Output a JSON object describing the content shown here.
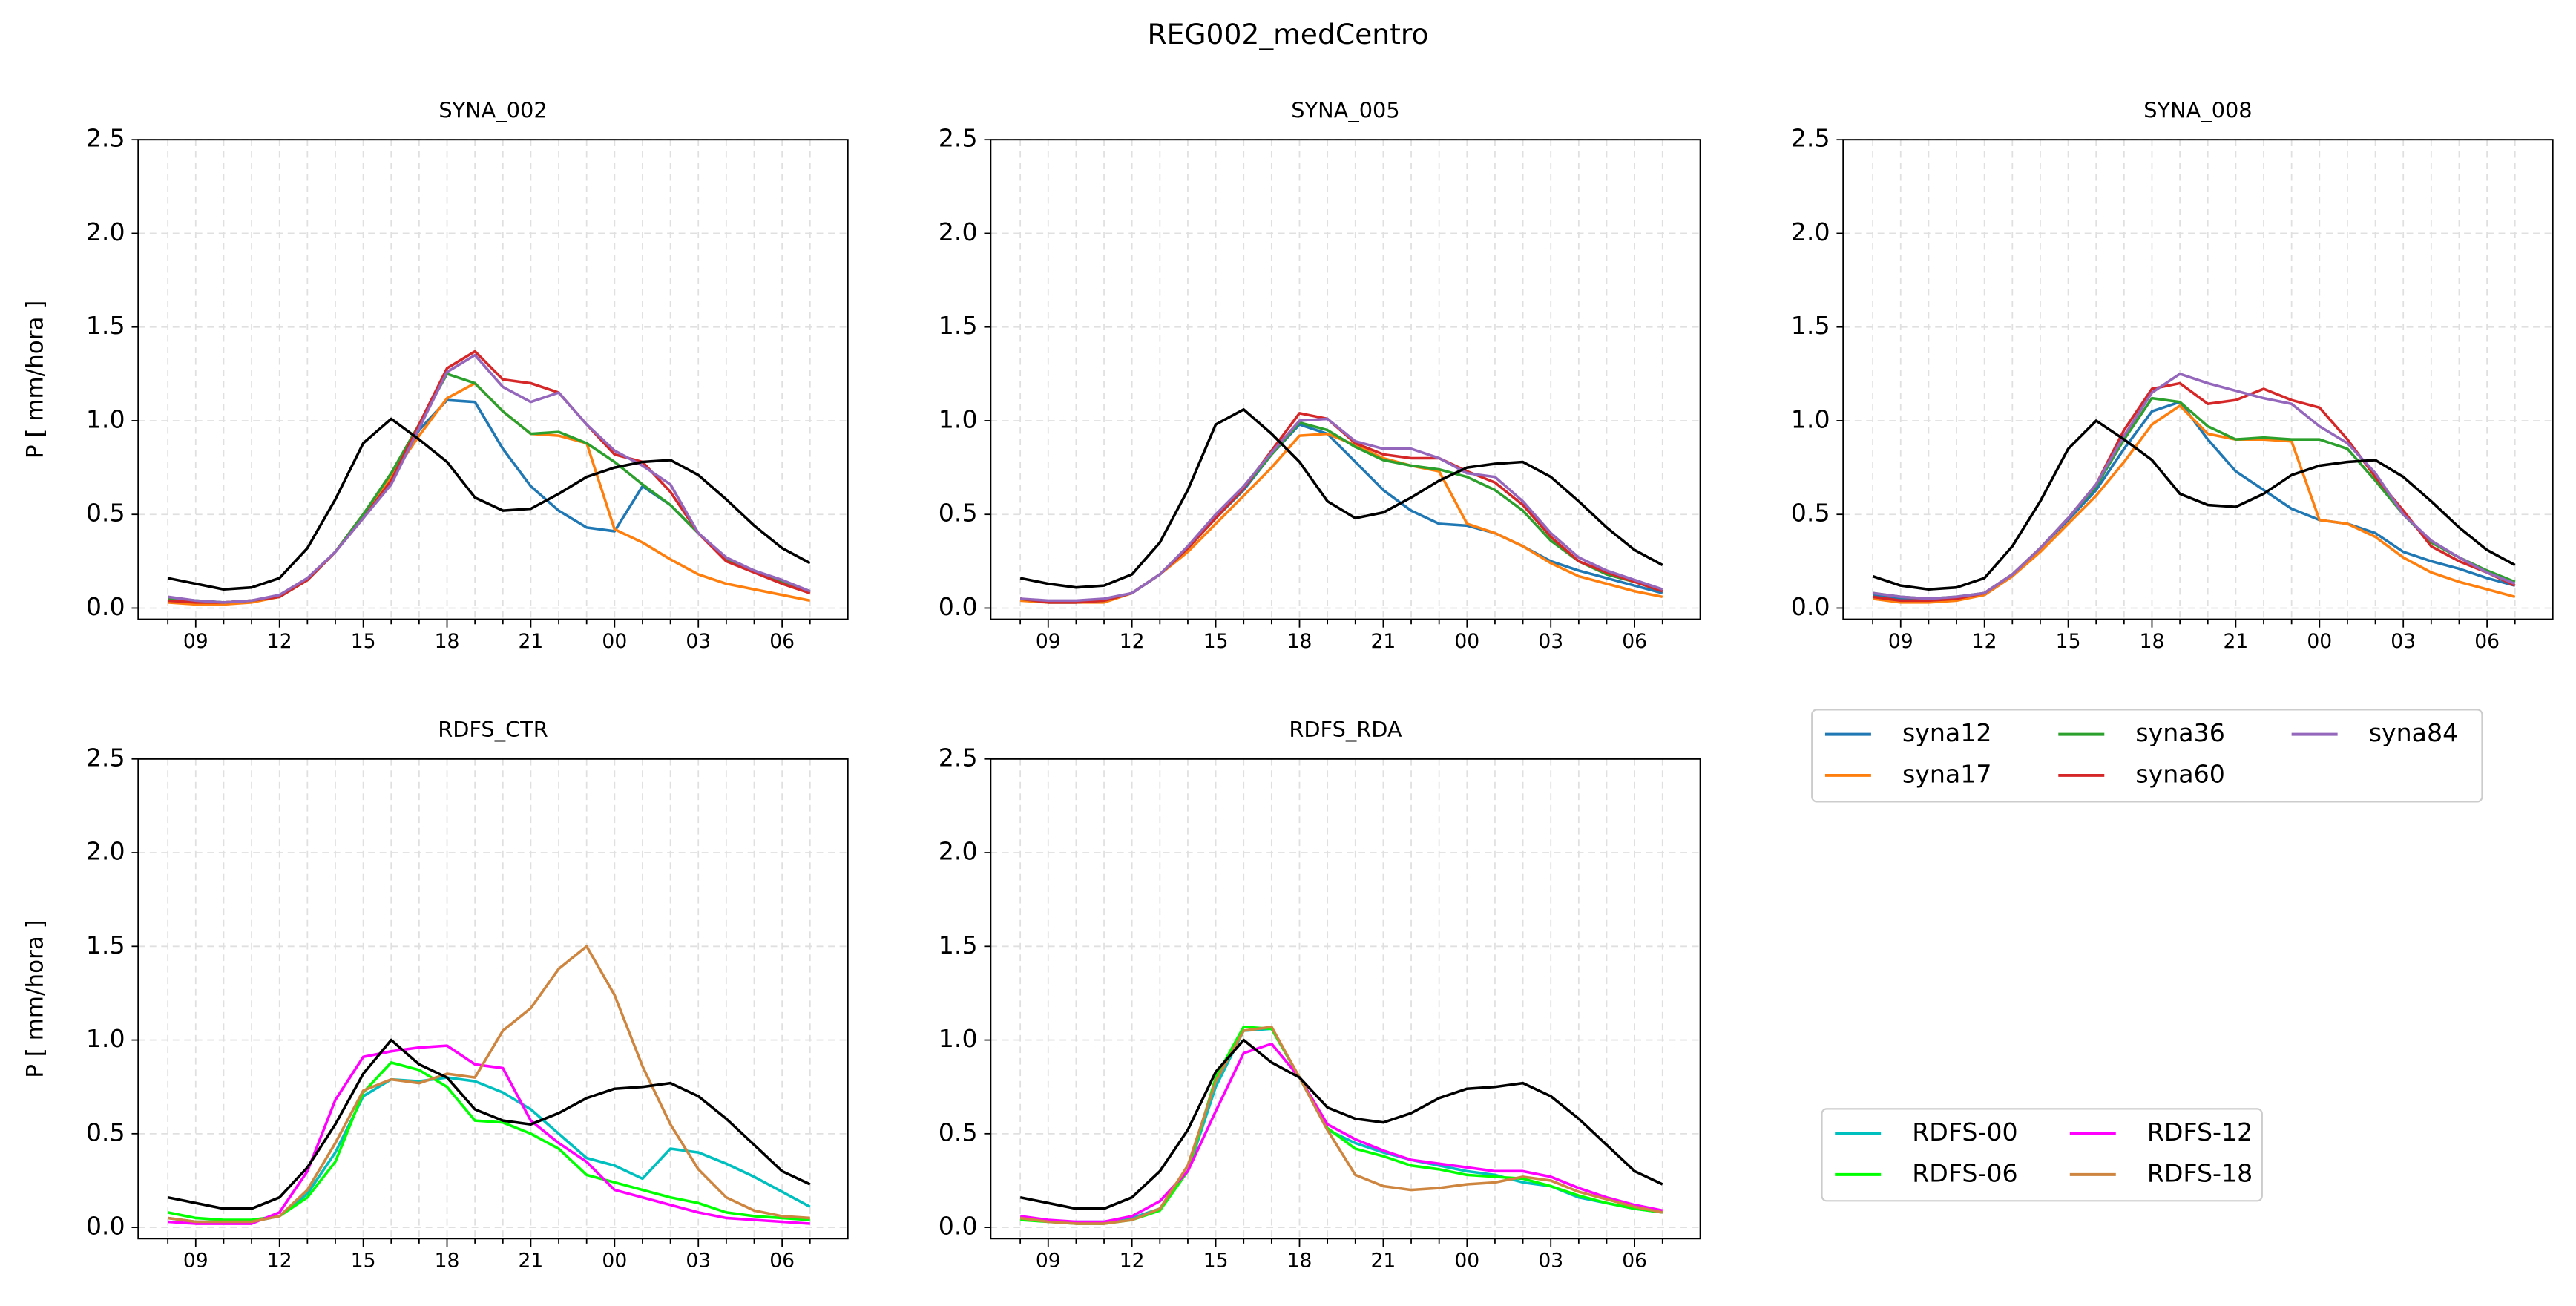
{
  "suptitle": "REG002_medCentro",
  "chart_data": [
    {
      "type": "line",
      "title": "SYNA_002",
      "ylabel": "P [ mm/hora ]",
      "categories": [
        null,
        "09",
        null,
        null,
        "12",
        null,
        null,
        "15",
        null,
        null,
        "18",
        null,
        null,
        "21",
        null,
        null,
        "00",
        null,
        null,
        "03",
        null,
        null,
        "06",
        null
      ],
      "ylim": [
        -0.06,
        2.5
      ],
      "yticks": [
        {
          "value": 0,
          "label": "0.0"
        },
        0.5,
        {
          "value": 1,
          "label": "1.0"
        },
        1.5,
        {
          "value": 2,
          "label": "2.0"
        },
        2.5
      ],
      "grid": true,
      "series": [
        {
          "color": "#1f77b4",
          "values": [
            0.05,
            0.04,
            0.03,
            0.04,
            0.06,
            0.15,
            0.3,
            0.5,
            0.7,
            0.95,
            1.11,
            1.1,
            0.85,
            0.65,
            0.52,
            0.43,
            0.41,
            0.65,
            0.55,
            0.4,
            0.26,
            0.2,
            0.14,
            0.08
          ]
        },
        {
          "color": "#ff7f0e",
          "values": [
            0.03,
            0.02,
            0.02,
            0.03,
            0.06,
            0.15,
            0.3,
            0.5,
            0.7,
            0.92,
            1.12,
            1.2,
            1.05,
            0.93,
            0.92,
            0.88,
            0.42,
            0.35,
            0.26,
            0.18,
            0.13,
            0.1,
            0.07,
            0.04
          ]
        },
        {
          "color": "#2ca02c",
          "values": [
            0.05,
            0.04,
            0.03,
            0.04,
            0.06,
            0.15,
            0.3,
            0.5,
            0.72,
            0.98,
            1.25,
            1.2,
            1.05,
            0.93,
            0.94,
            0.88,
            0.78,
            0.66,
            0.55,
            0.4,
            0.26,
            0.2,
            0.14,
            0.09
          ]
        },
        {
          "color": "#d62728",
          "values": [
            0.04,
            0.03,
            0.03,
            0.04,
            0.06,
            0.15,
            0.3,
            0.48,
            0.68,
            0.98,
            1.28,
            1.37,
            1.22,
            1.2,
            1.15,
            0.98,
            0.82,
            0.78,
            0.62,
            0.4,
            0.25,
            0.19,
            0.13,
            0.08
          ]
        },
        {
          "color": "#9467bd",
          "values": [
            0.06,
            0.04,
            0.03,
            0.04,
            0.07,
            0.16,
            0.3,
            0.48,
            0.66,
            0.96,
            1.26,
            1.35,
            1.18,
            1.1,
            1.15,
            0.98,
            0.84,
            0.76,
            0.66,
            0.4,
            0.27,
            0.2,
            0.15,
            0.09
          ]
        },
        {
          "color": "#000000",
          "values": [
            0.16,
            0.13,
            0.1,
            0.11,
            0.16,
            0.32,
            0.58,
            0.88,
            1.01,
            0.9,
            0.78,
            0.59,
            0.52,
            0.53,
            0.61,
            0.7,
            0.75,
            0.78,
            0.79,
            0.71,
            0.58,
            0.44,
            0.32,
            0.24
          ]
        }
      ]
    },
    {
      "type": "line",
      "title": "SYNA_005",
      "categories": [
        null,
        "09",
        null,
        null,
        "12",
        null,
        null,
        "15",
        null,
        null,
        "18",
        null,
        null,
        "21",
        null,
        null,
        "00",
        null,
        null,
        "03",
        null,
        null,
        "06",
        null
      ],
      "ylim": [
        -0.06,
        2.5
      ],
      "yticks": [
        {
          "value": 0,
          "label": "0.0"
        },
        0.5,
        {
          "value": 1,
          "label": "1.0"
        },
        1.5,
        {
          "value": 2,
          "label": "2.0"
        },
        2.5
      ],
      "grid": true,
      "series": [
        {
          "color": "#1f77b4",
          "values": [
            0.05,
            0.03,
            0.03,
            0.04,
            0.08,
            0.18,
            0.32,
            0.48,
            0.63,
            0.82,
            0.98,
            0.93,
            0.78,
            0.63,
            0.52,
            0.45,
            0.44,
            0.4,
            0.33,
            0.25,
            0.2,
            0.16,
            0.12,
            0.08
          ]
        },
        {
          "color": "#ff7f0e",
          "values": [
            0.04,
            0.03,
            0.03,
            0.03,
            0.08,
            0.18,
            0.3,
            0.45,
            0.6,
            0.75,
            0.92,
            0.93,
            0.87,
            0.8,
            0.76,
            0.73,
            0.45,
            0.4,
            0.33,
            0.24,
            0.17,
            0.13,
            0.09,
            0.06
          ]
        },
        {
          "color": "#2ca02c",
          "values": [
            0.05,
            0.03,
            0.03,
            0.04,
            0.08,
            0.18,
            0.32,
            0.48,
            0.64,
            0.82,
            0.99,
            0.95,
            0.86,
            0.79,
            0.76,
            0.74,
            0.7,
            0.63,
            0.52,
            0.36,
            0.25,
            0.18,
            0.14,
            0.09
          ]
        },
        {
          "color": "#d62728",
          "values": [
            0.05,
            0.03,
            0.03,
            0.04,
            0.08,
            0.18,
            0.32,
            0.48,
            0.64,
            0.84,
            1.04,
            1.01,
            0.88,
            0.82,
            0.8,
            0.8,
            0.73,
            0.67,
            0.55,
            0.38,
            0.25,
            0.19,
            0.14,
            0.09
          ]
        },
        {
          "color": "#9467bd",
          "values": [
            0.05,
            0.04,
            0.04,
            0.05,
            0.08,
            0.18,
            0.33,
            0.5,
            0.65,
            0.83,
            1.0,
            1.01,
            0.89,
            0.85,
            0.85,
            0.8,
            0.72,
            0.7,
            0.57,
            0.4,
            0.27,
            0.2,
            0.15,
            0.1
          ]
        },
        {
          "color": "#000000",
          "values": [
            0.16,
            0.13,
            0.11,
            0.12,
            0.18,
            0.35,
            0.63,
            0.98,
            1.06,
            0.93,
            0.78,
            0.57,
            0.48,
            0.51,
            0.59,
            0.68,
            0.75,
            0.77,
            0.78,
            0.7,
            0.57,
            0.43,
            0.31,
            0.23
          ]
        }
      ]
    },
    {
      "type": "line",
      "title": "SYNA_008",
      "categories": [
        null,
        "09",
        null,
        null,
        "12",
        null,
        null,
        "15",
        null,
        null,
        "18",
        null,
        null,
        "21",
        null,
        null,
        "00",
        null,
        null,
        "03",
        null,
        null,
        "06",
        null
      ],
      "ylim": [
        -0.06,
        2.5
      ],
      "yticks": [
        {
          "value": 0,
          "label": "0.0"
        },
        0.5,
        {
          "value": 1,
          "label": "1.0"
        },
        1.5,
        {
          "value": 2,
          "label": "2.0"
        },
        2.5
      ],
      "grid": true,
      "legend": true,
      "legend_columns": 3,
      "series": [
        {
          "name": "syna12",
          "color": "#1f77b4",
          "values": [
            0.07,
            0.05,
            0.05,
            0.05,
            0.07,
            0.17,
            0.32,
            0.47,
            0.63,
            0.85,
            1.05,
            1.1,
            0.9,
            0.73,
            0.63,
            0.53,
            0.47,
            0.45,
            0.4,
            0.3,
            0.25,
            0.21,
            0.16,
            0.12
          ]
        },
        {
          "name": "syna17",
          "color": "#ff7f0e",
          "values": [
            0.05,
            0.03,
            0.03,
            0.04,
            0.07,
            0.17,
            0.3,
            0.45,
            0.6,
            0.78,
            0.98,
            1.08,
            0.93,
            0.9,
            0.9,
            0.89,
            0.47,
            0.45,
            0.38,
            0.27,
            0.19,
            0.14,
            0.1,
            0.06
          ]
        },
        {
          "name": "syna36",
          "color": "#2ca02c",
          "values": [
            0.08,
            0.06,
            0.05,
            0.06,
            0.08,
            0.18,
            0.32,
            0.48,
            0.65,
            0.9,
            1.12,
            1.1,
            0.97,
            0.9,
            0.91,
            0.9,
            0.9,
            0.85,
            0.68,
            0.5,
            0.35,
            0.27,
            0.2,
            0.14
          ]
        },
        {
          "name": "syna60",
          "color": "#d62728",
          "values": [
            0.06,
            0.04,
            0.04,
            0.05,
            0.08,
            0.18,
            0.32,
            0.48,
            0.66,
            0.95,
            1.17,
            1.2,
            1.09,
            1.11,
            1.17,
            1.11,
            1.07,
            0.9,
            0.7,
            0.52,
            0.33,
            0.25,
            0.19,
            0.12
          ]
        },
        {
          "name": "syna84",
          "color": "#9467bd",
          "values": [
            0.08,
            0.06,
            0.05,
            0.06,
            0.08,
            0.18,
            0.32,
            0.48,
            0.66,
            0.92,
            1.15,
            1.25,
            1.2,
            1.16,
            1.12,
            1.09,
            0.97,
            0.88,
            0.72,
            0.5,
            0.36,
            0.27,
            0.19,
            0.13
          ]
        },
        {
          "color": "#000000",
          "values": [
            0.17,
            0.12,
            0.1,
            0.11,
            0.16,
            0.33,
            0.57,
            0.85,
            1.0,
            0.9,
            0.79,
            0.61,
            0.55,
            0.54,
            0.61,
            0.71,
            0.76,
            0.78,
            0.79,
            0.7,
            0.57,
            0.43,
            0.31,
            0.23
          ]
        }
      ]
    },
    {
      "type": "line",
      "title": "RDFS_CTR",
      "ylabel": "P [ mm/hora ]",
      "categories": [
        null,
        "09",
        null,
        null,
        "12",
        null,
        null,
        "15",
        null,
        null,
        "18",
        null,
        null,
        "21",
        null,
        null,
        "00",
        null,
        null,
        "03",
        null,
        null,
        "06",
        null
      ],
      "ylim": [
        -0.06,
        2.5
      ],
      "yticks": [
        {
          "value": 0,
          "label": "0.0"
        },
        0.5,
        {
          "value": 1,
          "label": "1.0"
        },
        1.5,
        {
          "value": 2,
          "label": "2.0"
        },
        2.5
      ],
      "grid": true,
      "series": [
        {
          "color": "#00bfbf",
          "values": [
            0.05,
            0.03,
            0.03,
            0.03,
            0.06,
            0.18,
            0.4,
            0.7,
            0.79,
            0.78,
            0.8,
            0.78,
            0.72,
            0.63,
            0.5,
            0.37,
            0.33,
            0.26,
            0.42,
            0.4,
            0.34,
            0.27,
            0.19,
            0.11
          ]
        },
        {
          "color": "#00ff00",
          "values": [
            0.08,
            0.05,
            0.04,
            0.04,
            0.06,
            0.16,
            0.35,
            0.72,
            0.88,
            0.84,
            0.75,
            0.57,
            0.56,
            0.5,
            0.42,
            0.28,
            0.24,
            0.2,
            0.16,
            0.13,
            0.08,
            0.06,
            0.05,
            0.04
          ]
        },
        {
          "color": "#ff00ff",
          "values": [
            0.03,
            0.02,
            0.02,
            0.02,
            0.08,
            0.3,
            0.68,
            0.91,
            0.94,
            0.96,
            0.97,
            0.87,
            0.85,
            0.57,
            0.45,
            0.35,
            0.2,
            0.16,
            0.12,
            0.08,
            0.05,
            0.04,
            0.03,
            0.02
          ]
        },
        {
          "color": "#cd853f",
          "values": [
            0.05,
            0.03,
            0.03,
            0.03,
            0.06,
            0.2,
            0.45,
            0.73,
            0.79,
            0.77,
            0.82,
            0.8,
            1.05,
            1.17,
            1.38,
            1.5,
            1.24,
            0.86,
            0.55,
            0.31,
            0.16,
            0.09,
            0.06,
            0.05
          ]
        },
        {
          "color": "#000000",
          "values": [
            0.16,
            0.13,
            0.1,
            0.1,
            0.16,
            0.32,
            0.55,
            0.82,
            1.0,
            0.87,
            0.8,
            0.63,
            0.57,
            0.55,
            0.61,
            0.69,
            0.74,
            0.75,
            0.77,
            0.7,
            0.58,
            0.44,
            0.3,
            0.23
          ]
        }
      ]
    },
    {
      "type": "line",
      "title": "RDFS_RDA",
      "categories": [
        null,
        "09",
        null,
        null,
        "12",
        null,
        null,
        "15",
        null,
        null,
        "18",
        null,
        null,
        "21",
        null,
        null,
        "00",
        null,
        null,
        "03",
        null,
        null,
        "06",
        null
      ],
      "ylim": [
        -0.06,
        2.5
      ],
      "yticks": [
        {
          "value": 0,
          "label": "0.0"
        },
        0.5,
        {
          "value": 1,
          "label": "1.0"
        },
        1.5,
        {
          "value": 2,
          "label": "2.0"
        },
        2.5
      ],
      "grid": true,
      "legend": true,
      "legend_columns": 2,
      "series": [
        {
          "name": "RDFS-00",
          "color": "#00bfbf",
          "values": [
            0.05,
            0.03,
            0.03,
            0.03,
            0.05,
            0.1,
            0.3,
            0.75,
            1.05,
            1.06,
            0.8,
            0.52,
            0.45,
            0.4,
            0.36,
            0.33,
            0.3,
            0.28,
            0.24,
            0.22,
            0.16,
            0.13,
            0.1,
            0.08
          ]
        },
        {
          "name": "RDFS-06",
          "color": "#00ff00",
          "values": [
            0.04,
            0.03,
            0.02,
            0.02,
            0.04,
            0.09,
            0.3,
            0.8,
            1.07,
            1.06,
            0.8,
            0.53,
            0.42,
            0.38,
            0.33,
            0.31,
            0.28,
            0.27,
            0.26,
            0.22,
            0.17,
            0.13,
            0.1,
            0.08
          ]
        },
        {
          "name": "RDFS-12",
          "color": "#ff00ff",
          "values": [
            0.06,
            0.04,
            0.03,
            0.03,
            0.06,
            0.14,
            0.3,
            0.62,
            0.93,
            0.98,
            0.8,
            0.55,
            0.47,
            0.41,
            0.36,
            0.34,
            0.32,
            0.3,
            0.3,
            0.27,
            0.21,
            0.16,
            0.12,
            0.09
          ]
        },
        {
          "name": "RDFS-18",
          "color": "#cd853f",
          "values": [
            0.05,
            0.03,
            0.02,
            0.02,
            0.04,
            0.1,
            0.33,
            0.78,
            1.05,
            1.07,
            0.8,
            0.52,
            0.28,
            0.22,
            0.2,
            0.21,
            0.23,
            0.24,
            0.27,
            0.25,
            0.19,
            0.15,
            0.11,
            0.08
          ]
        },
        {
          "color": "#000000",
          "values": [
            0.16,
            0.13,
            0.1,
            0.1,
            0.16,
            0.3,
            0.52,
            0.83,
            1.0,
            0.88,
            0.8,
            0.64,
            0.58,
            0.56,
            0.61,
            0.69,
            0.74,
            0.75,
            0.77,
            0.7,
            0.58,
            0.44,
            0.3,
            0.23
          ]
        }
      ]
    }
  ]
}
